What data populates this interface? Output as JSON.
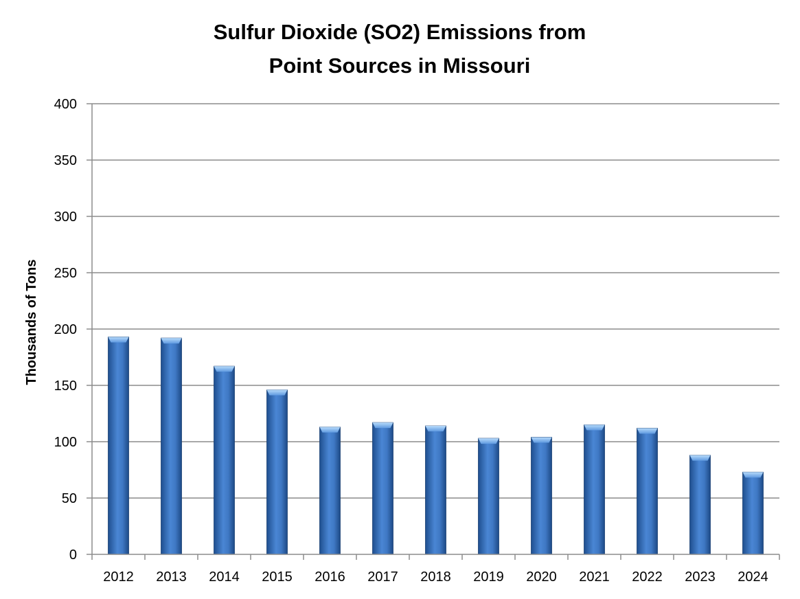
{
  "chart_data": {
    "type": "bar",
    "title_lines": [
      "Sulfur Dioxide (SO2) Emissions from",
      "Point Sources in Missouri"
    ],
    "xlabel": "",
    "ylabel": "Thousands of Tons",
    "categories": [
      "2012",
      "2013",
      "2014",
      "2015",
      "2016",
      "2017",
      "2018",
      "2019",
      "2020",
      "2021",
      "2022",
      "2023",
      "2024"
    ],
    "values": [
      193,
      192,
      167,
      146,
      113,
      117,
      114,
      103,
      104,
      115,
      112,
      88,
      73
    ],
    "ylim": [
      0,
      400
    ],
    "yticks": [
      0,
      50,
      100,
      150,
      200,
      250,
      300,
      350,
      400
    ],
    "grid": true,
    "legend": "none",
    "colors": {
      "bar_dark": "#1f4f8f",
      "bar_mid": "#4a86d4",
      "bar_light": "#7fb3f0",
      "bar_cap": "#9ccaf7",
      "gridline": "#8c8c8c",
      "axis": "#8c8c8c"
    }
  }
}
